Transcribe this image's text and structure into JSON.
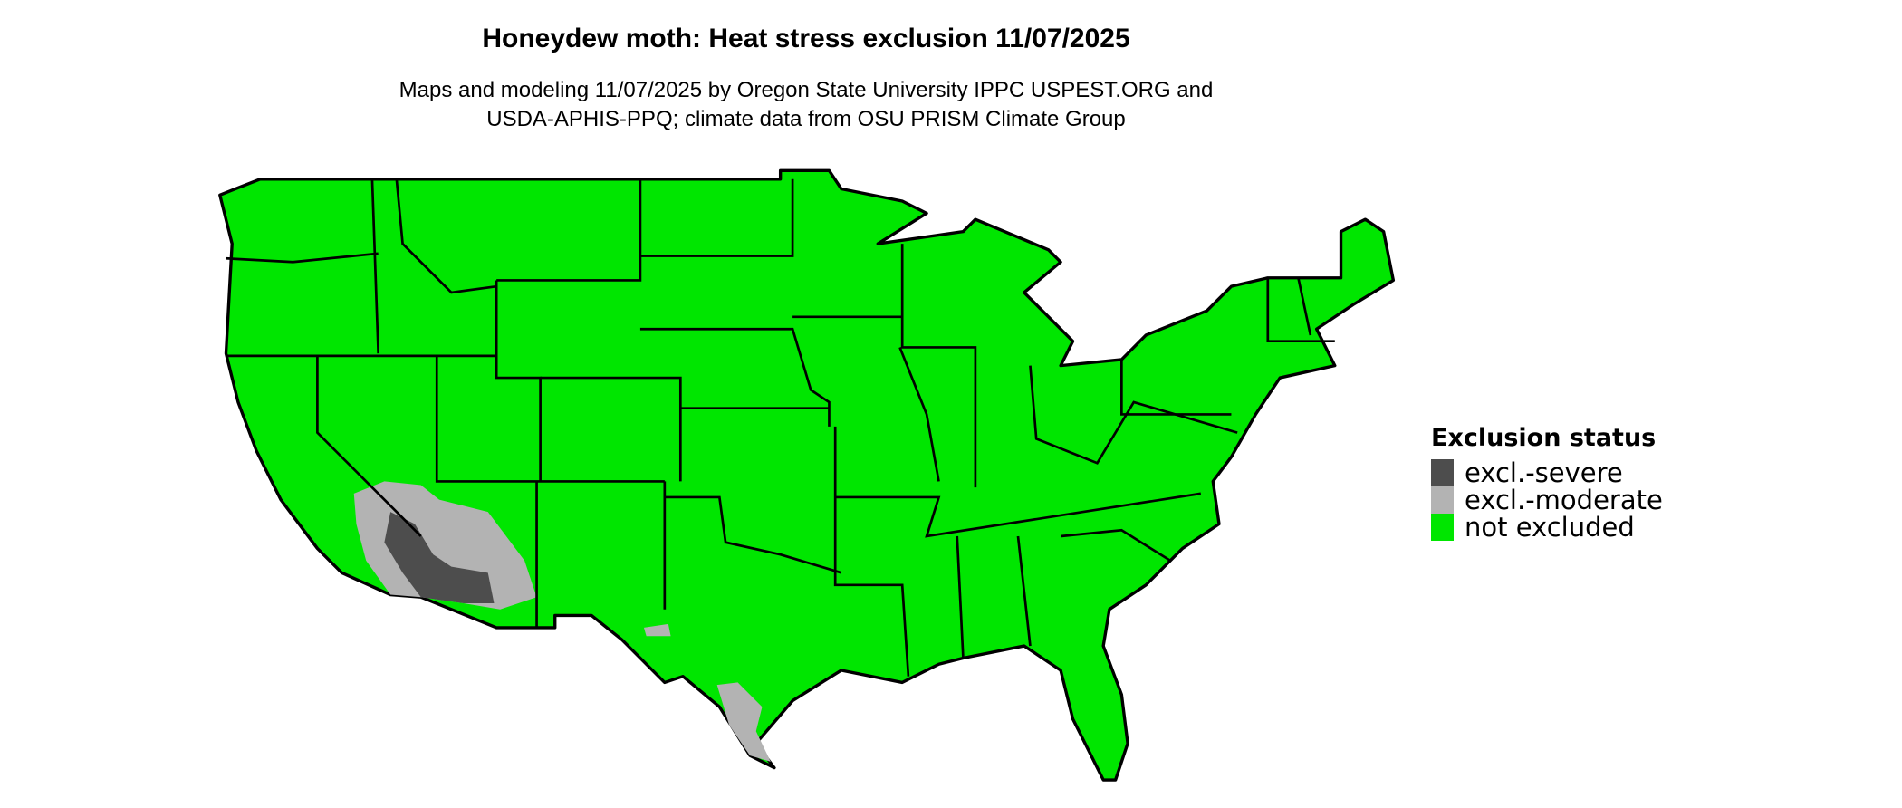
{
  "title": "Honeydew moth: Heat stress exclusion 11/07/2025",
  "subtitle_line1": "Maps and modeling 11/07/2025 by Oregon State University IPPC USPEST.ORG and",
  "subtitle_line2": "USDA-APHIS-PPQ; climate data from OSU PRISM Climate Group",
  "legend": {
    "title": "Exclusion status",
    "items": [
      {
        "label": "excl.-severe",
        "color": "#4d4d4d"
      },
      {
        "label": "excl.-moderate",
        "color": "#b3b3b3"
      },
      {
        "label": "not excluded",
        "color": "#00e600"
      }
    ]
  },
  "map": {
    "region": "Contiguous United States",
    "base_color": "#00e600",
    "border_color": "#000000",
    "excluded_areas": [
      "southwestern Arizona / southeastern California (severe and moderate)",
      "southern Nevada (moderate)",
      "south Texas (moderate)"
    ]
  }
}
